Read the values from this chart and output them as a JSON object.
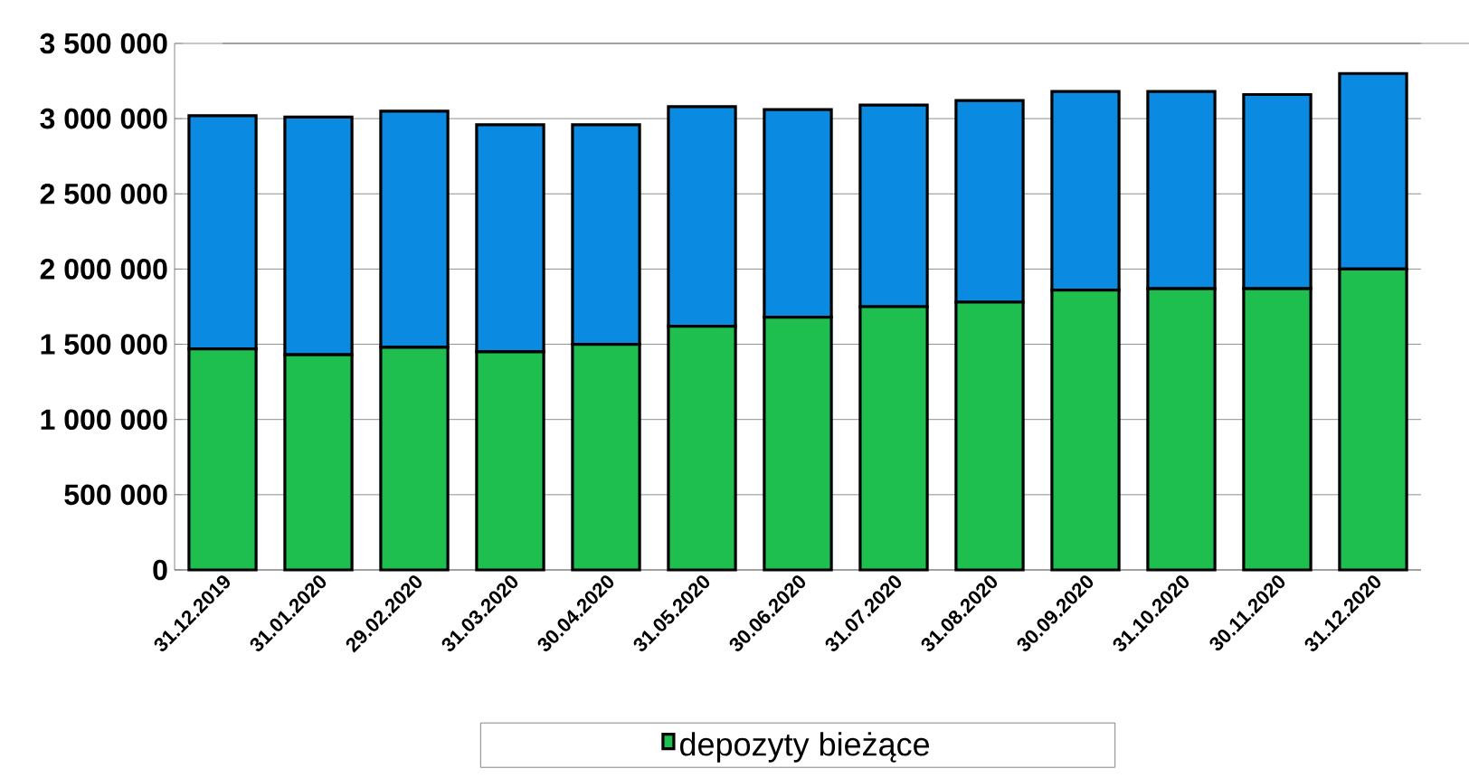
{
  "chart_data": {
    "type": "bar",
    "stacked": true,
    "categories": [
      "31.12.2019",
      "31.01.2020",
      "29.02.2020",
      "31.03.2020",
      "30.04.2020",
      "31.05.2020",
      "30.06.2020",
      "31.07.2020",
      "31.08.2020",
      "30.09.2020",
      "31.10.2020",
      "30.11.2020",
      "31.12.2020"
    ],
    "series": [
      {
        "name": "depozyty bieżące",
        "color": "#1fbf4f",
        "values": [
          1470000,
          1430000,
          1480000,
          1450000,
          1500000,
          1620000,
          1680000,
          1750000,
          1780000,
          1860000,
          1870000,
          1870000,
          2000000
        ]
      },
      {
        "color": "#0a8ae0",
        "values": [
          1550000,
          1580000,
          1570000,
          1510000,
          1460000,
          1460000,
          1380000,
          1340000,
          1340000,
          1320000,
          1310000,
          1290000,
          1300000
        ]
      }
    ],
    "ylim": [
      0,
      3500000
    ],
    "yticks": [
      {
        "value": 0,
        "label": "0"
      },
      {
        "value": 500000,
        "label": "500 000"
      },
      {
        "value": 1000000,
        "label": "1 000 000"
      },
      {
        "value": 1500000,
        "label": "1 500 000"
      },
      {
        "value": 2000000,
        "label": "2 000 000"
      },
      {
        "value": 2500000,
        "label": "2 500 000"
      },
      {
        "value": 3000000,
        "label": "3 000 000"
      },
      {
        "value": 3500000,
        "label": "3 500 000"
      }
    ],
    "grid": "y",
    "legend": "bottom"
  }
}
